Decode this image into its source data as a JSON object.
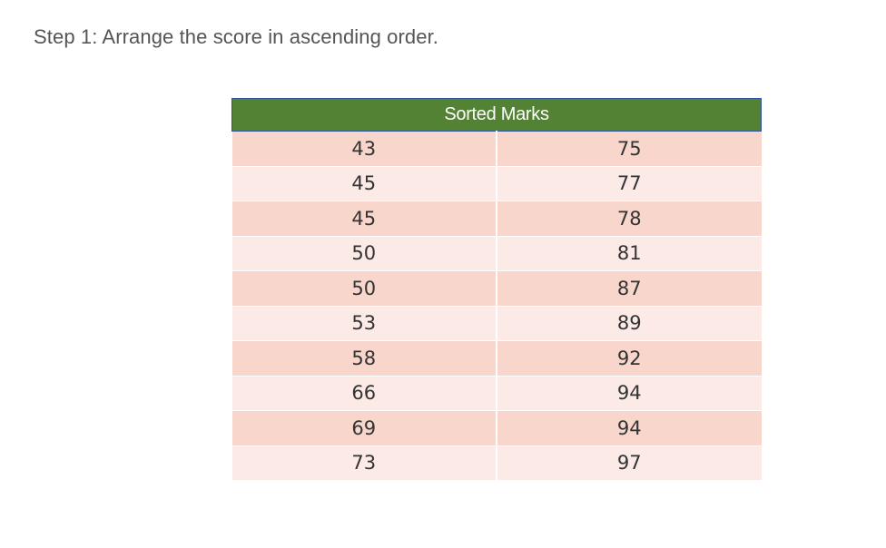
{
  "step_text": "Step 1: Arrange the score in ascending order.",
  "table": {
    "header": "Sorted Marks",
    "rows": [
      [
        "43",
        "75"
      ],
      [
        "45",
        "77"
      ],
      [
        "45",
        "78"
      ],
      [
        "50",
        "81"
      ],
      [
        "50",
        "87"
      ],
      [
        "53",
        "89"
      ],
      [
        "58",
        "92"
      ],
      [
        "66",
        "94"
      ],
      [
        "69",
        "94"
      ],
      [
        "73",
        "97"
      ]
    ],
    "colors": {
      "header_bg": "#548235",
      "header_text": "#ffffff",
      "row_odd_bg": "#f8d6cc",
      "row_even_bg": "#fbeae5"
    }
  }
}
